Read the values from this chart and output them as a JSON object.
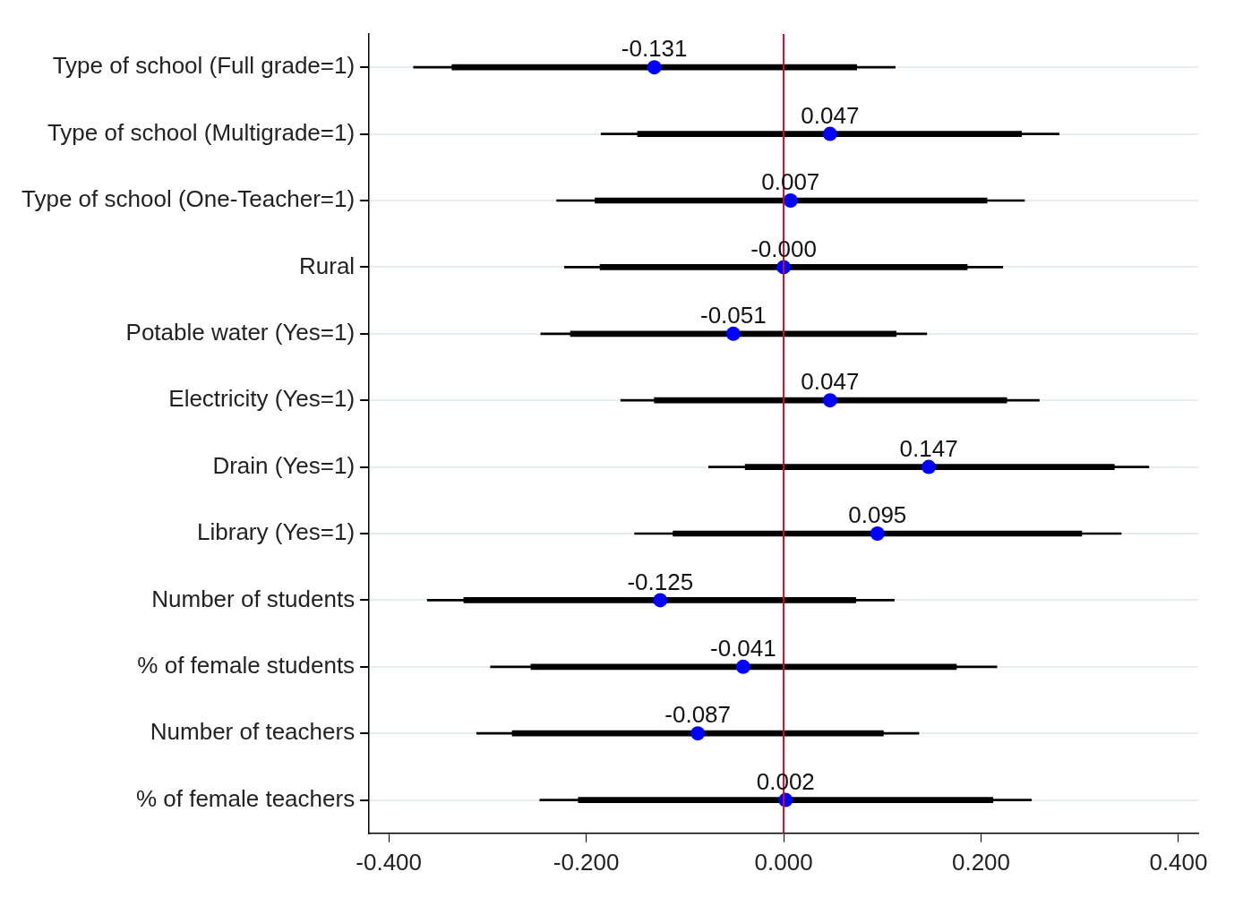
{
  "chart_data": {
    "type": "bar",
    "orientation": "horizontal",
    "categories": [
      "Type of school (Full grade=1)",
      "Type of school (Multigrade=1)",
      "Type of school (One-Teacher=1)",
      "Rural",
      "Potable water (Yes=1)",
      "Electricity (Yes=1)",
      "Drain (Yes=1)",
      "Library (Yes=1)",
      "Number of students",
      "% of female students",
      "Number of teachers",
      "% of female teachers"
    ],
    "series": [
      {
        "type": "bar",
        "color": "#000000",
        "base": [
          -0.375,
          -0.185,
          -0.23,
          -0.222,
          -0.246,
          -0.165,
          -0.076,
          -0.151,
          -0.361,
          -0.297,
          -0.311,
          -0.247
        ],
        "values": [
          0.488,
          0.464,
          0.474,
          0.444,
          0.391,
          0.424,
          0.446,
          0.493,
          0.473,
          0.513,
          0.448,
          0.498
        ]
      },
      {
        "type": "bar",
        "color": "#000000",
        "base": [
          -0.336,
          -0.148,
          -0.191,
          -0.186,
          -0.216,
          -0.131,
          -0.039,
          -0.112,
          -0.324,
          -0.256,
          -0.275,
          -0.208
        ],
        "values": [
          0.41,
          0.389,
          0.397,
          0.372,
          0.33,
          0.357,
          0.374,
          0.414,
          0.397,
          0.431,
          0.376,
          0.42
        ]
      },
      {
        "type": "scatter",
        "color": "#0000ff",
        "marker": "circle",
        "values": [
          -0.131,
          0.047,
          0.007,
          0,
          -0.051,
          0.047,
          0.147,
          0.095,
          -0.125,
          -0.041,
          -0.087,
          0.002
        ],
        "value_labels": [
          "-0.131",
          "0.047",
          "0.007",
          "-0.000",
          "-0.051",
          "0.047",
          "0.147",
          "0.095",
          "-0.125",
          "-0.041",
          "-0.087",
          "0.002"
        ]
      }
    ],
    "xlim": [
      -0.42,
      0.42
    ],
    "xticks": [
      {
        "value": -0.4,
        "label": "-0.400"
      },
      {
        "value": -0.2,
        "label": "-0.200"
      },
      {
        "value": 0,
        "label": "0.000"
      },
      {
        "value": 0.2,
        "label": "0.200"
      },
      {
        "value": 0.4,
        "label": "0.400"
      }
    ],
    "grid": "y",
    "ref_lines": [
      {
        "axis": "x",
        "value": 0,
        "color": "#c8102e"
      }
    ]
  }
}
